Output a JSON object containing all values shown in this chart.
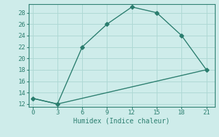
{
  "line1_x": [
    0,
    3,
    6,
    9,
    12,
    15,
    18,
    21
  ],
  "line1_y": [
    13,
    12,
    22,
    26,
    29,
    28,
    24,
    18
  ],
  "line2_x": [
    0,
    3,
    6,
    9,
    12,
    15,
    18,
    21
  ],
  "line2_y": [
    13,
    12,
    13,
    14,
    15,
    16,
    17,
    18
  ],
  "color": "#2a7d6e",
  "bg_color": "#ceecea",
  "grid_color": "#aed8d4",
  "xlabel": "Humidex (Indice chaleur)",
  "xlim": [
    -0.5,
    22
  ],
  "ylim": [
    11.5,
    29.5
  ],
  "xticks": [
    0,
    3,
    6,
    9,
    12,
    15,
    18,
    21
  ],
  "yticks": [
    12,
    14,
    16,
    18,
    20,
    22,
    24,
    26,
    28
  ],
  "marker": "D",
  "markersize": 3,
  "linewidth": 1.0,
  "label_fontsize": 7,
  "tick_fontsize": 6.5
}
